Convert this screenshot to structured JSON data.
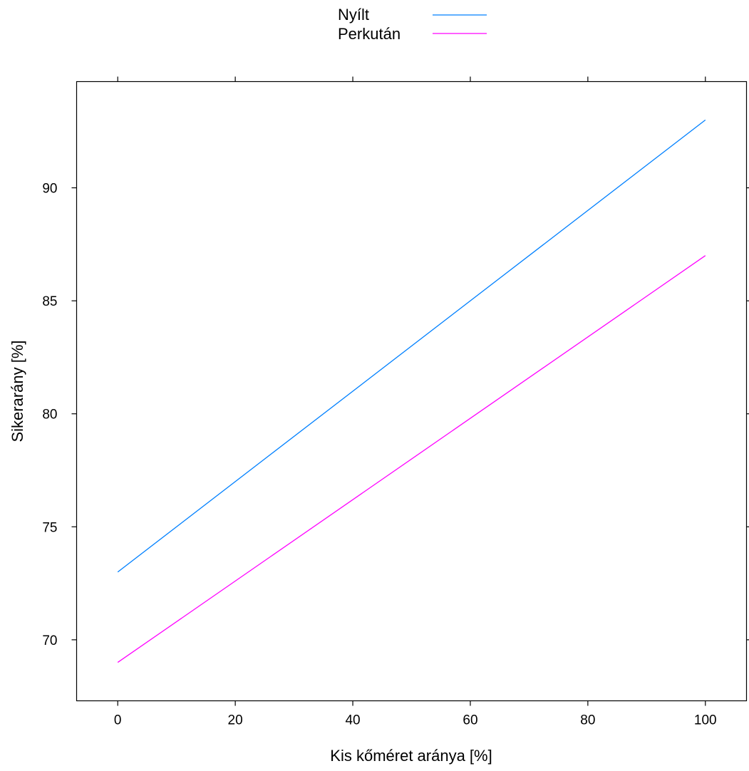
{
  "chart_data": {
    "type": "line",
    "xlabel": "Kis kőméret aránya [%]",
    "ylabel": "Sikerarány [%]",
    "xlim": [
      -7,
      107
    ],
    "ylim": [
      67.3,
      94.7
    ],
    "x_ticks": [
      0,
      20,
      40,
      60,
      80,
      100
    ],
    "y_ticks": [
      70,
      75,
      80,
      85,
      90
    ],
    "grid": false,
    "legend_position": "top-center",
    "series": [
      {
        "name": "Nyílt",
        "color": "#0080ff",
        "x": [
          0,
          100
        ],
        "y": [
          73,
          93
        ]
      },
      {
        "name": "Perkután",
        "color": "#ff00ff",
        "x": [
          0,
          100
        ],
        "y": [
          69,
          87
        ]
      }
    ]
  }
}
